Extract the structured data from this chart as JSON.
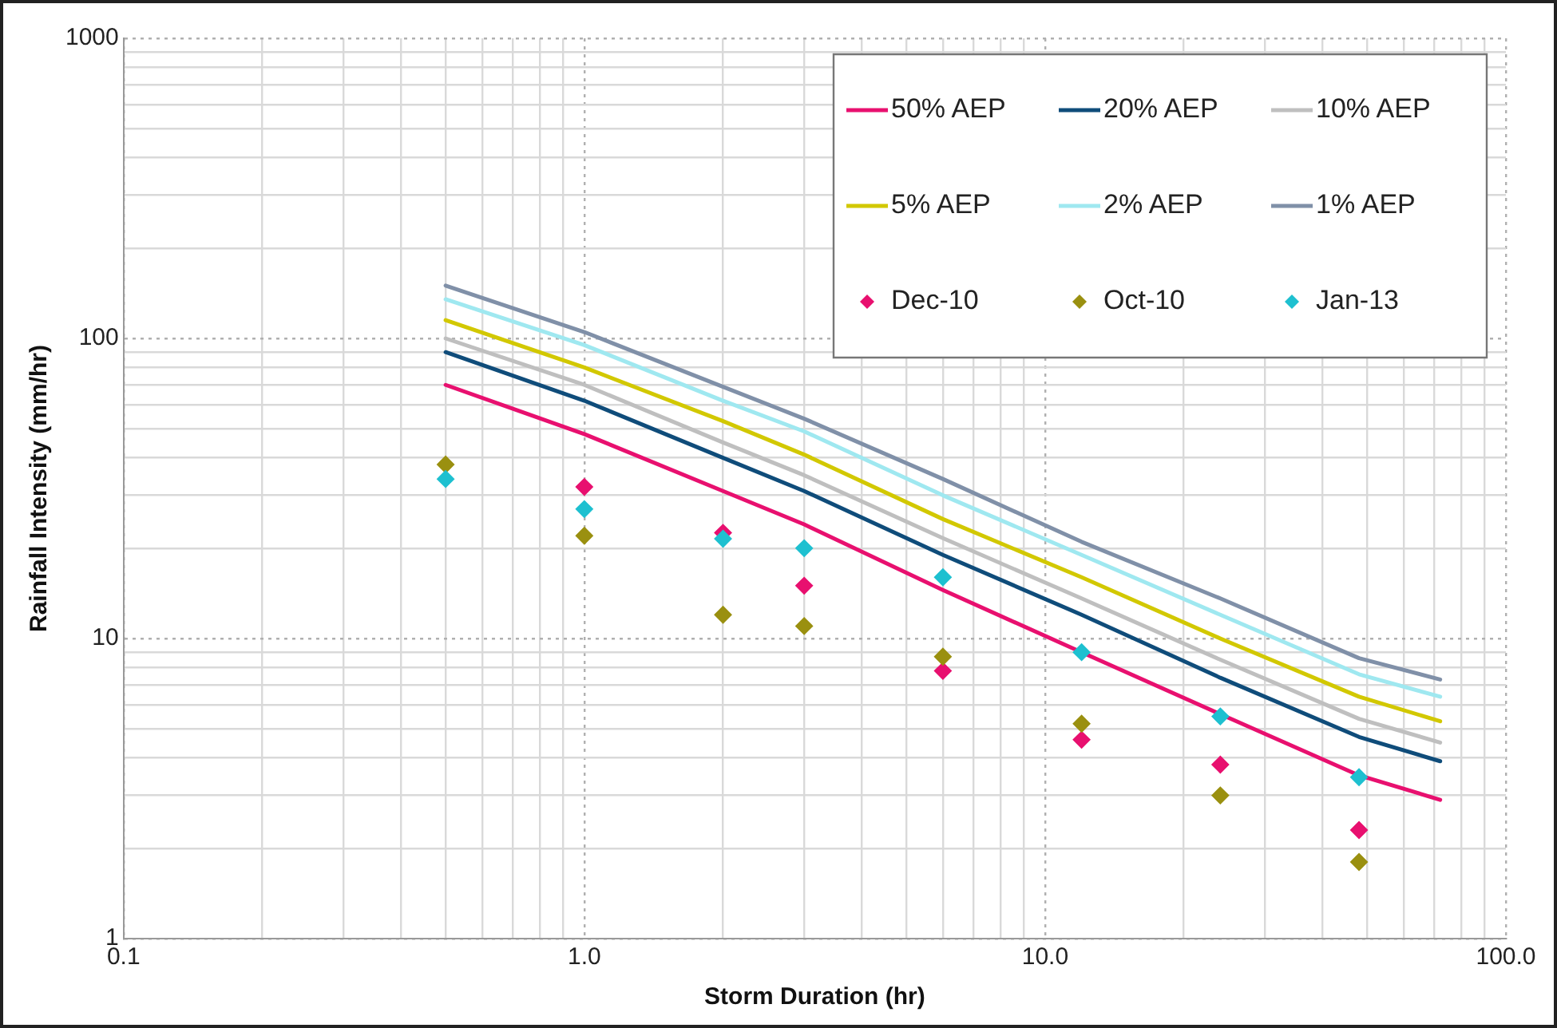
{
  "chart_data": {
    "type": "line",
    "xlabel": "Storm Duration (hr)",
    "ylabel": "Rainfall Intensity (mm/hr)",
    "log": "xy",
    "grid": true,
    "legend": "top right",
    "xlim": [
      0.1,
      100
    ],
    "ylim": [
      1,
      1000
    ],
    "xticks": [
      {
        "value": 0.1,
        "label": "0.1"
      },
      {
        "value": 0.2,
        "label": null
      },
      {
        "value": 0.3,
        "label": null
      },
      {
        "value": 0.4,
        "label": null
      },
      {
        "value": 0.5,
        "label": null
      },
      {
        "value": 0.6,
        "label": null
      },
      {
        "value": 0.7,
        "label": null
      },
      {
        "value": 0.8,
        "label": null
      },
      {
        "value": 0.9,
        "label": null
      },
      {
        "value": 1,
        "label": "1.0"
      },
      {
        "value": 2,
        "label": null
      },
      {
        "value": 3,
        "label": null
      },
      {
        "value": 4,
        "label": null
      },
      {
        "value": 5,
        "label": null
      },
      {
        "value": 6,
        "label": null
      },
      {
        "value": 7,
        "label": null
      },
      {
        "value": 8,
        "label": null
      },
      {
        "value": 9,
        "label": null
      },
      {
        "value": 10,
        "label": "10.0"
      },
      {
        "value": 20,
        "label": null
      },
      {
        "value": 30,
        "label": null
      },
      {
        "value": 40,
        "label": null
      },
      {
        "value": 50,
        "label": null
      },
      {
        "value": 60,
        "label": null
      },
      {
        "value": 70,
        "label": null
      },
      {
        "value": 80,
        "label": null
      },
      {
        "value": 90,
        "label": null
      },
      {
        "value": 100,
        "label": "100.0"
      }
    ],
    "yticks": [
      1,
      {
        "value": 2,
        "label": null
      },
      {
        "value": 3,
        "label": null
      },
      {
        "value": 4,
        "label": null
      },
      {
        "value": 5,
        "label": null
      },
      {
        "value": 6,
        "label": null
      },
      {
        "value": 7,
        "label": null
      },
      {
        "value": 8,
        "label": null
      },
      {
        "value": 9,
        "label": null
      },
      10,
      {
        "value": 20,
        "label": null
      },
      {
        "value": 30,
        "label": null
      },
      {
        "value": 40,
        "label": null
      },
      {
        "value": 50,
        "label": null
      },
      {
        "value": 60,
        "label": null
      },
      {
        "value": 70,
        "label": null
      },
      {
        "value": 80,
        "label": null
      },
      {
        "value": 90,
        "label": null
      },
      100,
      {
        "value": 200,
        "label": null
      },
      {
        "value": 300,
        "label": null
      },
      {
        "value": 400,
        "label": null
      },
      {
        "value": 500,
        "label": null
      },
      {
        "value": 600,
        "label": null
      },
      {
        "value": 700,
        "label": null
      },
      {
        "value": 800,
        "label": null
      },
      {
        "value": 900,
        "label": null
      },
      1000
    ],
    "x": [
      0.5,
      1,
      2,
      3,
      6,
      12,
      24,
      48,
      72
    ],
    "series": [
      {
        "name": "50% AEP",
        "marker": "none",
        "color": "#e8106f",
        "values": [
          70,
          48,
          31,
          24,
          14.5,
          9.0,
          5.6,
          3.5,
          2.9
        ]
      },
      {
        "name": "20% AEP",
        "marker": "none",
        "color": "#0f4c7a",
        "values": [
          90,
          62,
          40,
          31,
          19,
          12,
          7.4,
          4.7,
          3.9
        ]
      },
      {
        "name": "10% AEP",
        "marker": "none",
        "color": "#bfbfbf",
        "values": [
          100,
          70,
          45,
          35,
          21.6,
          13.6,
          8.5,
          5.4,
          4.5
        ]
      },
      {
        "name": "5% AEP",
        "marker": "none",
        "color": "#d2c800",
        "values": [
          115,
          80,
          53,
          41,
          25,
          16,
          10,
          6.4,
          5.3
        ]
      },
      {
        "name": "2% AEP",
        "marker": "none",
        "color": "#9fe8f0",
        "values": [
          135,
          95,
          62,
          49,
          30,
          19,
          12,
          7.6,
          6.4
        ]
      },
      {
        "name": "1% AEP",
        "marker": "none",
        "color": "#8090a8",
        "values": [
          150,
          105,
          69,
          54,
          34,
          21,
          13.6,
          8.6,
          7.3
        ]
      },
      {
        "name": "Dec-10",
        "type": "scatter",
        "marker": "diamond",
        "color": "#e8106f",
        "x": [
          1,
          2,
          3,
          6,
          12,
          24,
          48
        ],
        "values": [
          32,
          22.5,
          15,
          7.8,
          4.6,
          3.8,
          2.3
        ]
      },
      {
        "name": "Oct-10",
        "type": "scatter",
        "marker": "diamond",
        "color": "#9a9010",
        "x": [
          0.5,
          1,
          2,
          3,
          6,
          12,
          24,
          48
        ],
        "values": [
          38,
          22,
          12,
          11,
          8.7,
          5.2,
          3.0,
          1.8
        ]
      },
      {
        "name": "Jan-13",
        "type": "scatter",
        "marker": "diamond",
        "color": "#1ec0d0",
        "x": [
          0.5,
          1,
          2,
          3,
          6,
          12,
          24,
          48
        ],
        "values": [
          34,
          27,
          21.5,
          20,
          16,
          9.0,
          5.5,
          3.45
        ]
      }
    ]
  }
}
